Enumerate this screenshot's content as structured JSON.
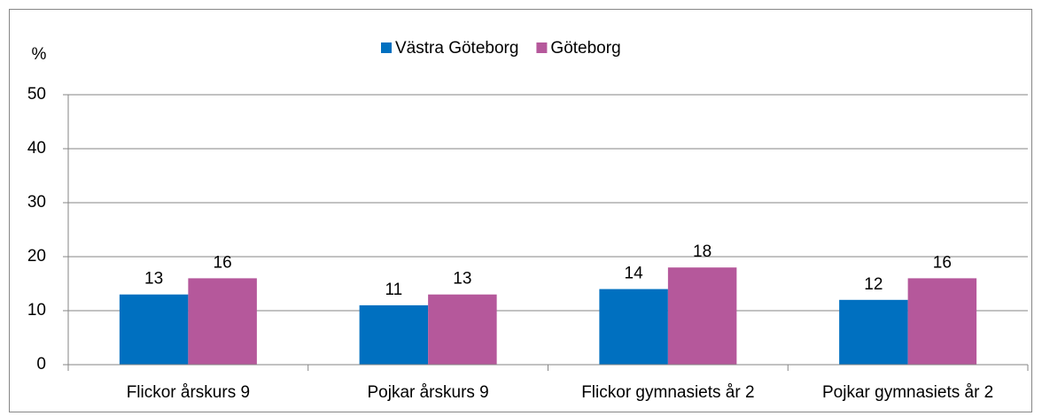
{
  "chart_data": {
    "type": "bar",
    "y_label": "%",
    "categories": [
      "Flickor årskurs 9",
      "Pojkar årskurs 9",
      "Flickor gymnasiets år 2",
      "Pojkar gymnasiets år 2"
    ],
    "series": [
      {
        "name": "Västra Göteborg",
        "color": "#0070c0",
        "values": [
          13,
          11,
          14,
          12
        ]
      },
      {
        "name": "Göteborg",
        "color": "#b5589b",
        "values": [
          16,
          13,
          18,
          16
        ]
      }
    ],
    "ylim": [
      0,
      50
    ],
    "yticks": [
      0,
      10,
      20,
      30,
      40,
      50
    ],
    "grid": true,
    "legend": "top",
    "data_labels": true
  }
}
